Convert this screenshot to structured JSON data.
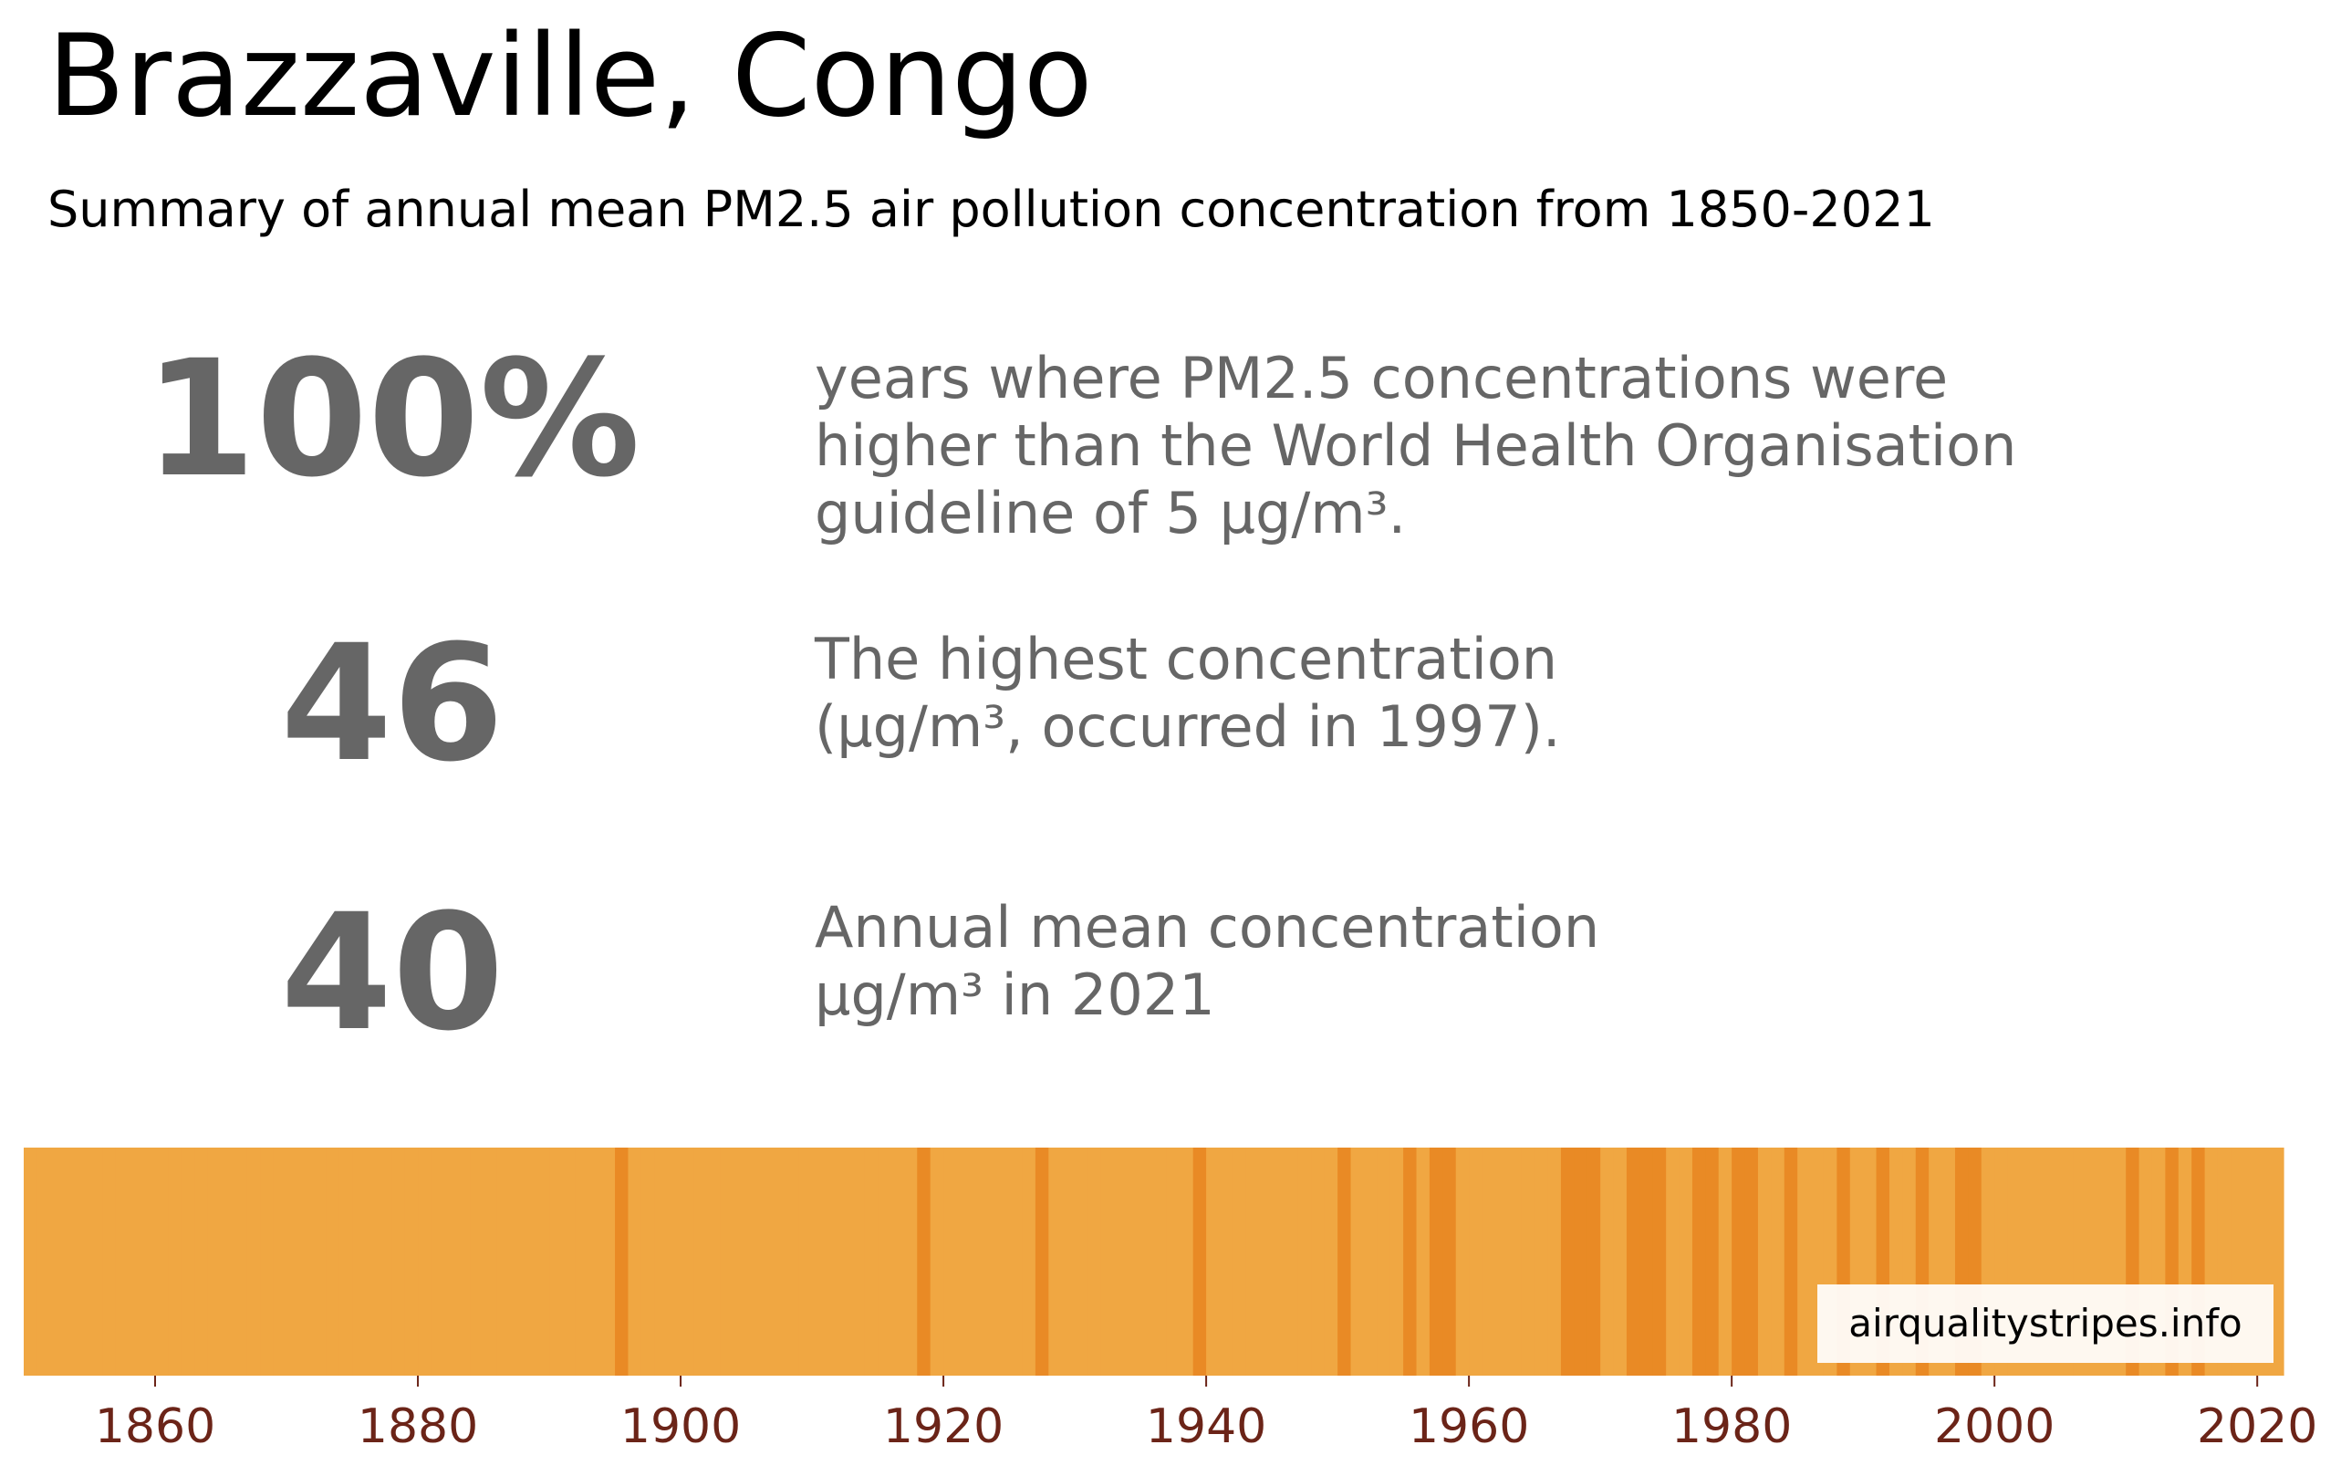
{
  "title": "Brazzaville, Congo",
  "subtitle": "Summary of annual mean PM2.5 air pollution concentration from 1850-2021",
  "stats": [
    {
      "value": "100%",
      "description": [
        "years where PM2.5 concentrations were",
        "higher than the World Health Organisation",
        "guideline of 5 μg/m³."
      ]
    },
    {
      "value": "46",
      "description": [
        "The highest concentration",
        "(μg/m³, occurred in 1997)."
      ]
    },
    {
      "value": "40",
      "description": [
        "Annual mean concentration",
        "μg/m³ in 2021"
      ]
    }
  ],
  "watermark": "airqualitystripes.info",
  "colors": {
    "text_stat": "#666666",
    "tick_label": "#6b2418",
    "stripe_base": "#f0a742",
    "stripe_dark": "#e98a25"
  },
  "chart_data": {
    "type": "heatmap",
    "title": "",
    "xlabel": "",
    "ylabel": "",
    "xlim": [
      1850,
      2022
    ],
    "x_ticks": [
      1860,
      1880,
      1900,
      1920,
      1940,
      1960,
      1980,
      2000,
      2020
    ],
    "start_year": 1850,
    "end_year": 2021,
    "category_colors": {
      "moderate": "#f0a742",
      "high": "#e98a25"
    },
    "default_category": "moderate",
    "high_years": [
      1895,
      1918,
      1927,
      1939,
      1950,
      1955,
      1957,
      1958,
      1967,
      1968,
      1969,
      1972,
      1973,
      1974,
      1977,
      1978,
      1980,
      1981,
      1984,
      1988,
      1991,
      1994,
      1997,
      1998,
      2010,
      2013,
      2015
    ]
  }
}
